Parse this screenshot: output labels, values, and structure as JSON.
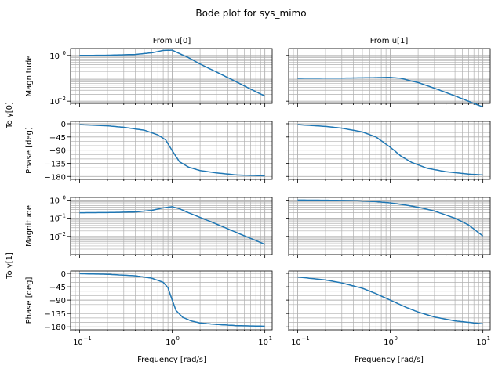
{
  "title": "Bode plot for sys_mimo",
  "col_titles": [
    "From u[0]",
    "From u[1]"
  ],
  "row_titles": [
    "To y[0]",
    "To y[1]"
  ],
  "xlabel": "Frequency [rad/s]",
  "x_ticks": [
    {
      "value": 0.1,
      "base": "10",
      "exp": "−1"
    },
    {
      "value": 1,
      "base": "10",
      "exp": "0"
    },
    {
      "value": 10,
      "base": "10",
      "exp": "1"
    }
  ],
  "colors": {
    "line": "#1f77b4",
    "grid": "#b0b0b0"
  },
  "chart_data": [
    {
      "type": "line",
      "panel": "To y[0] / From u[0] magnitude",
      "ylabel": "Magnitude",
      "y_scale": "log",
      "x_scale": "log",
      "xlim": [
        0.08,
        12
      ],
      "ylim": [
        0.008,
        2.0
      ],
      "grid": true,
      "y_ticks": [
        {
          "value": 1,
          "label": "10",
          "exp": "0"
        },
        {
          "value": 0.01,
          "label": "10",
          "exp": "−2"
        }
      ],
      "series": [
        {
          "x": [
            0.1,
            0.2,
            0.4,
            0.6,
            0.8,
            1.0,
            1.2,
            1.5,
            2,
            3,
            5,
            7,
            10
          ],
          "y": [
            1.0,
            1.02,
            1.1,
            1.3,
            1.65,
            1.7,
            1.2,
            0.8,
            0.42,
            0.19,
            0.068,
            0.034,
            0.0168
          ]
        }
      ]
    },
    {
      "type": "line",
      "panel": "To y[0] / From u[1] magnitude",
      "ylabel": "",
      "y_scale": "log",
      "x_scale": "log",
      "xlim": [
        0.08,
        12
      ],
      "ylim": [
        0.008,
        2.0
      ],
      "grid": true,
      "y_ticks": [
        {
          "value": 1,
          "label": "",
          "exp": ""
        },
        {
          "value": 0.01,
          "label": "",
          "exp": ""
        }
      ],
      "series": [
        {
          "x": [
            0.1,
            0.3,
            0.6,
            1.0,
            1.3,
            2,
            3,
            5,
            10
          ],
          "y": [
            0.1,
            0.102,
            0.106,
            0.11,
            0.1,
            0.065,
            0.037,
            0.017,
            0.0056
          ]
        }
      ]
    },
    {
      "type": "line",
      "panel": "To y[0] / From u[0] phase",
      "ylabel": "Phase [deg]",
      "x_scale": "log",
      "xlim": [
        0.08,
        12
      ],
      "ylim": [
        -190,
        8
      ],
      "grid": true,
      "y_ticks": [
        {
          "value": 0,
          "label": "0"
        },
        {
          "value": -45,
          "label": "−45"
        },
        {
          "value": -90,
          "label": "−90"
        },
        {
          "value": -135,
          "label": "−135"
        },
        {
          "value": -180,
          "label": "−180"
        }
      ],
      "series": [
        {
          "x": [
            0.1,
            0.2,
            0.3,
            0.5,
            0.7,
            0.85,
            1.0,
            1.2,
            1.5,
            2,
            3,
            5,
            10
          ],
          "y": [
            -3,
            -7,
            -12,
            -22,
            -38,
            -55,
            -92,
            -130,
            -148,
            -160,
            -168,
            -175,
            -178
          ]
        }
      ]
    },
    {
      "type": "line",
      "panel": "To y[0] / From u[1] phase",
      "ylabel": "",
      "x_scale": "log",
      "xlim": [
        0.08,
        12
      ],
      "ylim": [
        -190,
        8
      ],
      "grid": true,
      "y_ticks": [
        {
          "value": 0,
          "label": ""
        },
        {
          "value": -45,
          "label": ""
        },
        {
          "value": -90,
          "label": ""
        },
        {
          "value": -135,
          "label": ""
        },
        {
          "value": -180,
          "label": ""
        }
      ],
      "series": [
        {
          "x": [
            0.1,
            0.2,
            0.3,
            0.5,
            0.7,
            1.0,
            1.3,
            1.7,
            2.5,
            4,
            7,
            10
          ],
          "y": [
            -3,
            -9,
            -15,
            -28,
            -45,
            -80,
            -110,
            -132,
            -152,
            -164,
            -172,
            -175
          ]
        }
      ]
    },
    {
      "type": "line",
      "panel": "To y[1] / From u[0] magnitude",
      "ylabel": "Magnitude",
      "y_scale": "log",
      "x_scale": "log",
      "xlim": [
        0.08,
        12
      ],
      "ylim": [
        0.001,
        1.4
      ],
      "grid": true,
      "y_ticks": [
        {
          "value": 1,
          "label": "10",
          "exp": "0"
        },
        {
          "value": 0.1,
          "label": "10",
          "exp": "−1"
        },
        {
          "value": 0.01,
          "label": "10",
          "exp": "−2"
        }
      ],
      "series": [
        {
          "x": [
            0.1,
            0.2,
            0.4,
            0.6,
            0.8,
            1.0,
            1.2,
            1.5,
            2,
            3,
            5,
            7,
            10
          ],
          "y": [
            0.2,
            0.205,
            0.22,
            0.27,
            0.37,
            0.43,
            0.33,
            0.2,
            0.11,
            0.048,
            0.016,
            0.0078,
            0.0037
          ]
        }
      ]
    },
    {
      "type": "line",
      "panel": "To y[1] / From u[1] magnitude",
      "ylabel": "",
      "y_scale": "log",
      "x_scale": "log",
      "xlim": [
        0.08,
        12
      ],
      "ylim": [
        0.001,
        1.4
      ],
      "grid": true,
      "y_ticks": [
        {
          "value": 1,
          "label": "",
          "exp": ""
        },
        {
          "value": 0.1,
          "label": "",
          "exp": ""
        },
        {
          "value": 0.01,
          "label": "",
          "exp": ""
        }
      ],
      "series": [
        {
          "x": [
            0.1,
            0.2,
            0.4,
            0.7,
            1.0,
            1.5,
            2,
            3,
            5,
            7,
            10
          ],
          "y": [
            1.0,
            0.98,
            0.93,
            0.82,
            0.7,
            0.52,
            0.4,
            0.25,
            0.1,
            0.043,
            0.0105
          ]
        }
      ]
    },
    {
      "type": "line",
      "panel": "To y[1] / From u[0] phase",
      "ylabel": "Phase [deg]",
      "x_scale": "log",
      "xlim": [
        0.08,
        12
      ],
      "ylim": [
        -190,
        8
      ],
      "grid": true,
      "y_ticks": [
        {
          "value": 0,
          "label": "0"
        },
        {
          "value": -45,
          "label": "−45"
        },
        {
          "value": -90,
          "label": "−90"
        },
        {
          "value": -135,
          "label": "−135"
        },
        {
          "value": -180,
          "label": "−180"
        }
      ],
      "series": [
        {
          "x": [
            0.1,
            0.2,
            0.4,
            0.6,
            0.8,
            0.9,
            1.0,
            1.1,
            1.3,
            1.6,
            2,
            3,
            5,
            10
          ],
          "y": [
            -1,
            -3,
            -8,
            -16,
            -30,
            -48,
            -90,
            -125,
            -148,
            -160,
            -167,
            -172,
            -176,
            -178
          ]
        }
      ]
    },
    {
      "type": "line",
      "panel": "To y[1] / From u[1] phase",
      "ylabel": "",
      "x_scale": "log",
      "xlim": [
        0.08,
        12
      ],
      "ylim": [
        -190,
        8
      ],
      "grid": true,
      "y_ticks": [
        {
          "value": 0,
          "label": ""
        },
        {
          "value": -45,
          "label": ""
        },
        {
          "value": -90,
          "label": ""
        },
        {
          "value": -135,
          "label": ""
        },
        {
          "value": -180,
          "label": ""
        }
      ],
      "series": [
        {
          "x": [
            0.1,
            0.2,
            0.3,
            0.5,
            0.7,
            1.0,
            1.5,
            2,
            3,
            5,
            10
          ],
          "y": [
            -12,
            -22,
            -32,
            -50,
            -68,
            -90,
            -115,
            -130,
            -147,
            -160,
            -170
          ]
        }
      ]
    }
  ]
}
